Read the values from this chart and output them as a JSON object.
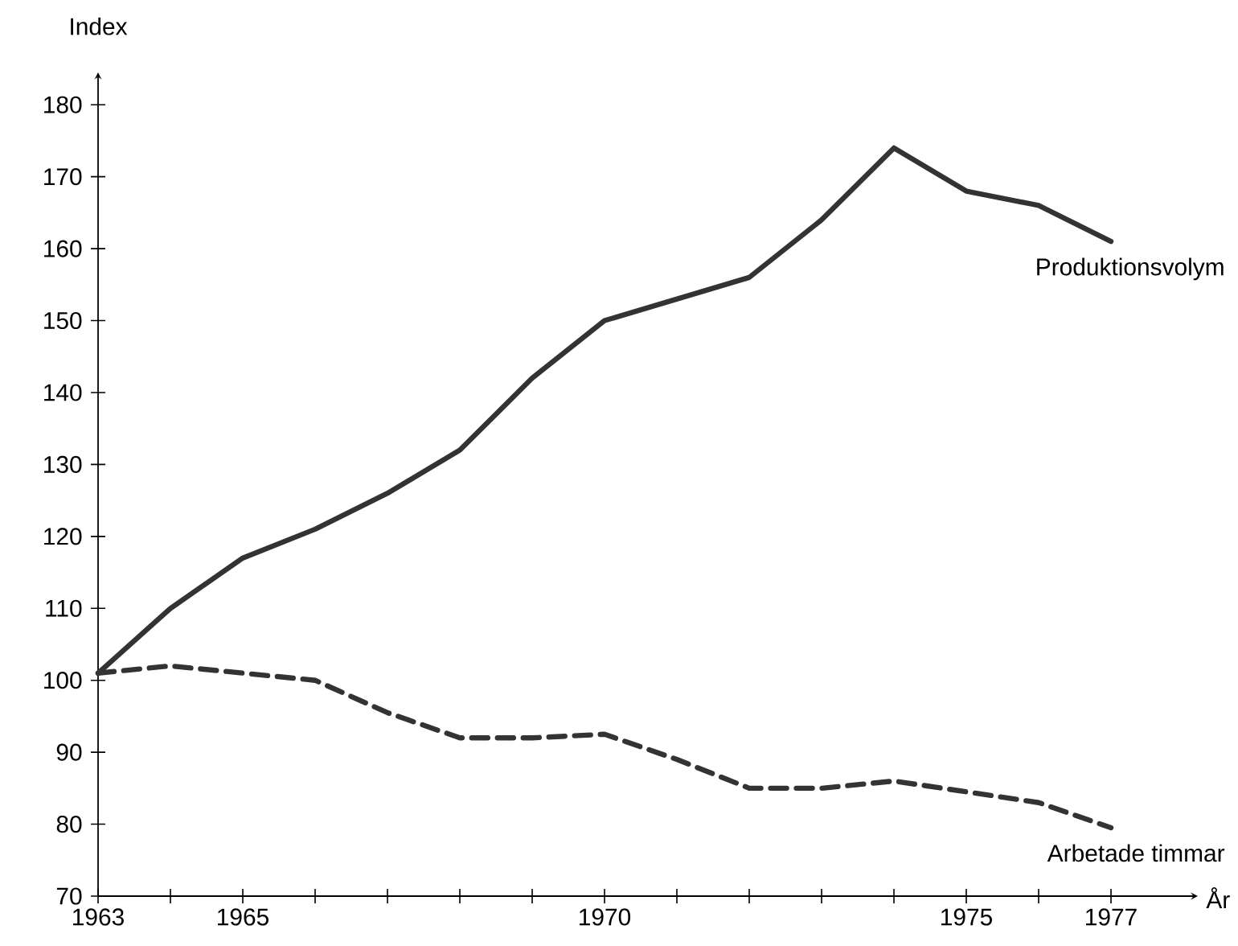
{
  "chart_data": {
    "type": "line",
    "xlabel": "År",
    "ylabel": "Index",
    "x": [
      1963,
      1964,
      1965,
      1966,
      1967,
      1968,
      1969,
      1970,
      1971,
      1972,
      1973,
      1974,
      1975,
      1976,
      1977
    ],
    "series": [
      {
        "name": "Produktionsvolym",
        "color": "#333333",
        "line_style": "solid",
        "values": [
          101,
          110,
          117,
          121,
          126,
          132,
          142,
          150,
          153,
          156,
          164,
          174,
          168,
          166,
          161
        ]
      },
      {
        "name": "Arbetade timmar",
        "color": "#333333",
        "line_style": "dashed",
        "values": [
          101,
          102,
          101,
          100,
          95.5,
          92,
          92,
          92.5,
          89,
          85,
          85,
          86,
          84.5,
          83,
          79.5
        ]
      }
    ],
    "xlim": [
      1963,
      1978.2
    ],
    "ylim": [
      70,
      184.5
    ],
    "xticks": [
      1963,
      {
        "value": 1964,
        "label": null
      },
      1965,
      {
        "value": 1966,
        "label": null
      },
      {
        "value": 1967,
        "label": null
      },
      {
        "value": 1968,
        "label": null
      },
      {
        "value": 1969,
        "label": null
      },
      1970,
      {
        "value": 1971,
        "label": null
      },
      {
        "value": 1972,
        "label": null
      },
      {
        "value": 1973,
        "label": null
      },
      {
        "value": 1974,
        "label": null
      },
      1975,
      {
        "value": 1976,
        "label": null
      },
      1977
    ],
    "yticks": [
      70,
      80,
      90,
      100,
      110,
      120,
      130,
      140,
      150,
      160,
      170,
      180
    ],
    "grid": false,
    "legend": false,
    "marker": "none"
  }
}
